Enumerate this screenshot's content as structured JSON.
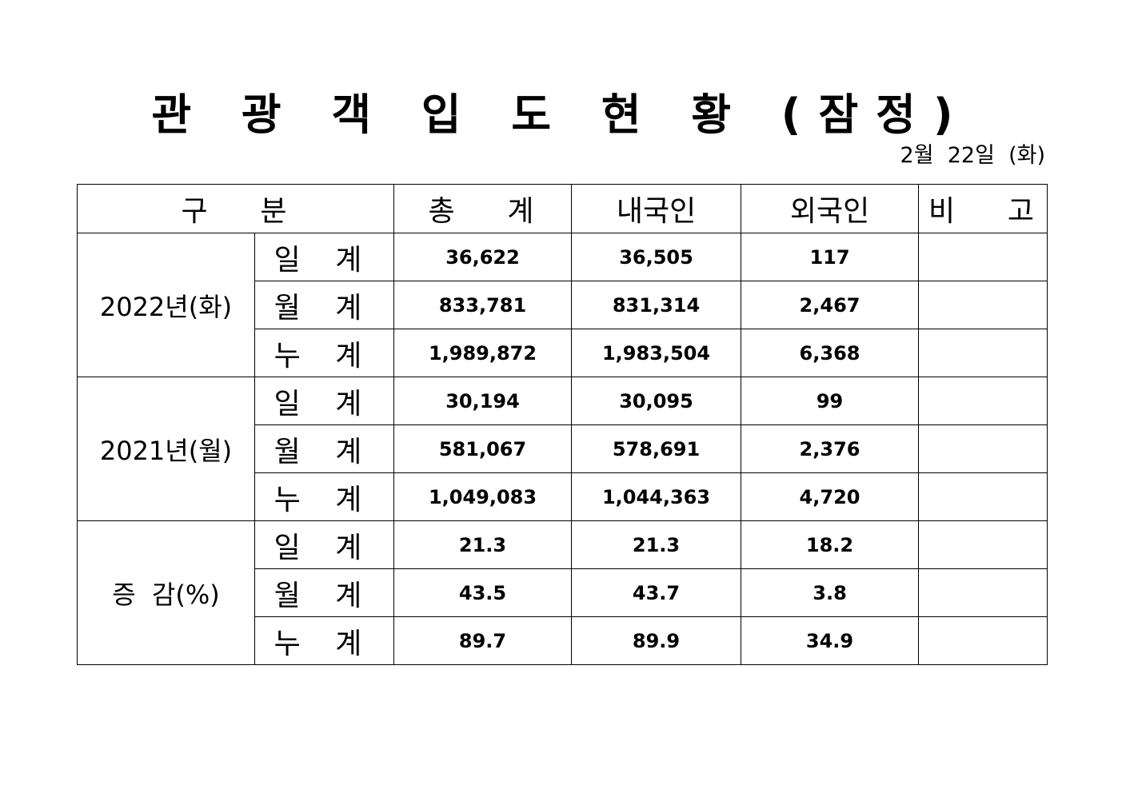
{
  "title": "관 광 객 입 도 현 황 (잠정)",
  "date": "2월  22일  (화)",
  "headers": {
    "category": "구    분",
    "total": "총    계",
    "domestic": "내국인",
    "foreign": "외국인",
    "remarks": "비    고"
  },
  "groups": [
    {
      "label": "2022년(화)",
      "rows": [
        {
          "sub": "일 계",
          "total": "36,622",
          "domestic": "36,505",
          "foreign": "117",
          "remark": ""
        },
        {
          "sub": "월 계",
          "total": "833,781",
          "domestic": "831,314",
          "foreign": "2,467",
          "remark": ""
        },
        {
          "sub": "누 계",
          "total": "1,989,872",
          "domestic": "1,983,504",
          "foreign": "6,368",
          "remark": ""
        }
      ]
    },
    {
      "label": "2021년(월)",
      "rows": [
        {
          "sub": "일 계",
          "total": "30,194",
          "domestic": "30,095",
          "foreign": "99",
          "remark": ""
        },
        {
          "sub": "월 계",
          "total": "581,067",
          "domestic": "578,691",
          "foreign": "2,376",
          "remark": ""
        },
        {
          "sub": "누 계",
          "total": "1,049,083",
          "domestic": "1,044,363",
          "foreign": "4,720",
          "remark": ""
        }
      ]
    },
    {
      "label": "증  감(%)",
      "rows": [
        {
          "sub": "일 계",
          "total": "21.3",
          "domestic": "21.3",
          "foreign": "18.2",
          "remark": ""
        },
        {
          "sub": "월 계",
          "total": "43.5",
          "domestic": "43.7",
          "foreign": "3.8",
          "remark": ""
        },
        {
          "sub": "누 계",
          "total": "89.7",
          "domestic": "89.9",
          "foreign": "34.9",
          "remark": ""
        }
      ]
    }
  ]
}
